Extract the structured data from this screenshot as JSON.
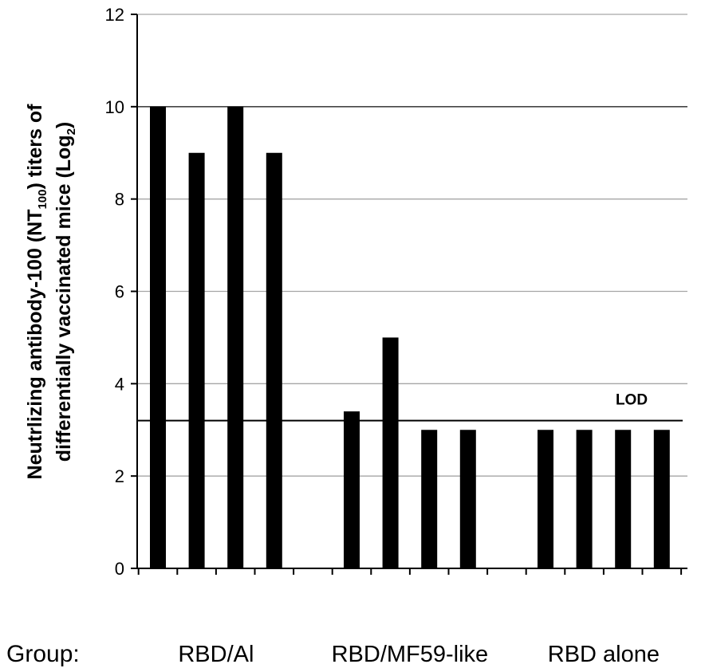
{
  "chart_data": {
    "type": "bar",
    "title": "",
    "ylabel": {
      "line1_pre": "Neutrlizing antibody-100 (NT",
      "line1_sub": "100",
      "line1_post": ") titers of",
      "line2_pre": "differentially vaccinated mice (Log",
      "line2_sub": "2",
      "line2_post": ")"
    },
    "xlabel": "Group:",
    "ylim": [
      0,
      12
    ],
    "yticks": [
      "0",
      "2",
      "4",
      "6",
      "8",
      "10",
      "12"
    ],
    "grid": true,
    "groups": [
      "RBD/Al",
      "RBD/MF59-like",
      "RBD alone"
    ],
    "values": [
      [
        10,
        9,
        10,
        9
      ],
      [
        3.4,
        5,
        3,
        3
      ],
      [
        3,
        3,
        3,
        3
      ]
    ],
    "lod": {
      "label": "LOD",
      "value": 3.2
    },
    "bar_color": "#000000",
    "grid_color": "#a6a6a6"
  }
}
